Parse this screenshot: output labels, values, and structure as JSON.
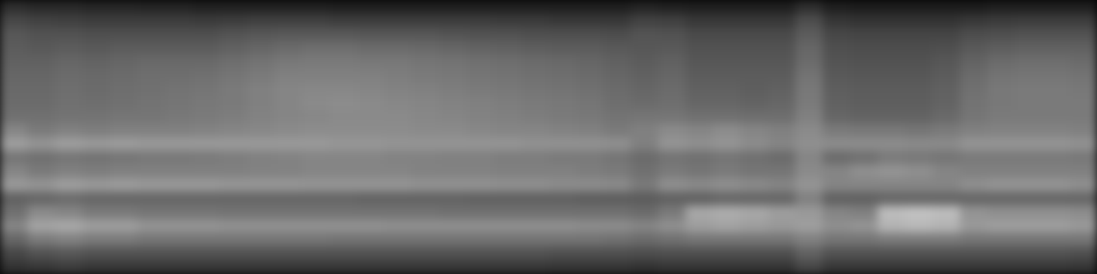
{
  "chart_data": {
    "type": "heatmap",
    "tick_labels": false,
    "zlim": [
      0,
      100
    ],
    "cells": [
      [
        18,
        16,
        16,
        15,
        15,
        14,
        14,
        13,
        13,
        13,
        13,
        13,
        12,
        12,
        12,
        12,
        12,
        12,
        12,
        12,
        12,
        12,
        12,
        14,
        13,
        12,
        12,
        12,
        12,
        18,
        12,
        11,
        11,
        11,
        11,
        11,
        12,
        12,
        12,
        12
      ],
      [
        28,
        26,
        25,
        24,
        24,
        24,
        24,
        23,
        24,
        25,
        25,
        25,
        24,
        24,
        24,
        24,
        24,
        24,
        23,
        23,
        22,
        22,
        22,
        26,
        25,
        22,
        22,
        22,
        22,
        30,
        21,
        20,
        20,
        20,
        20,
        22,
        23,
        24,
        24,
        24
      ],
      [
        34,
        32,
        32,
        31,
        31,
        31,
        31,
        31,
        33,
        34,
        35,
        35,
        35,
        34,
        34,
        34,
        33,
        32,
        32,
        31,
        31,
        31,
        30,
        33,
        32,
        29,
        29,
        29,
        29,
        36,
        28,
        27,
        27,
        27,
        27,
        30,
        31,
        32,
        32,
        32
      ],
      [
        36,
        35,
        36,
        35,
        36,
        36,
        36,
        36,
        38,
        40,
        42,
        43,
        43,
        42,
        42,
        41,
        40,
        39,
        38,
        37,
        36,
        36,
        35,
        34,
        35,
        32,
        32,
        32,
        32,
        40,
        31,
        30,
        30,
        30,
        31,
        35,
        37,
        38,
        38,
        38
      ],
      [
        38,
        38,
        40,
        39,
        40,
        41,
        41,
        41,
        43,
        45,
        47,
        48,
        48,
        47,
        47,
        46,
        45,
        44,
        43,
        42,
        41,
        40,
        38,
        36,
        38,
        34,
        34,
        34,
        34,
        42,
        33,
        32,
        32,
        32,
        34,
        39,
        42,
        43,
        43,
        42
      ],
      [
        40,
        40,
        42,
        41,
        42,
        43,
        43,
        44,
        46,
        48,
        50,
        50,
        50,
        50,
        49,
        48,
        47,
        46,
        45,
        44,
        43,
        42,
        40,
        38,
        40,
        36,
        36,
        36,
        36,
        45,
        35,
        34,
        34,
        34,
        36,
        42,
        45,
        46,
        46,
        45
      ],
      [
        41,
        41,
        43,
        42,
        43,
        44,
        45,
        46,
        48,
        50,
        52,
        53,
        53,
        52,
        51,
        50,
        49,
        48,
        47,
        46,
        45,
        44,
        42,
        40,
        42,
        38,
        38,
        37,
        38,
        47,
        37,
        36,
        36,
        36,
        38,
        44,
        47,
        48,
        48,
        47
      ],
      [
        42,
        42,
        44,
        43,
        44,
        45,
        46,
        47,
        48,
        50,
        52,
        54,
        55,
        54,
        53,
        52,
        51,
        50,
        49,
        48,
        47,
        46,
        43,
        42,
        43,
        40,
        40,
        39,
        40,
        48,
        38,
        37,
        37,
        37,
        39,
        45,
        47,
        48,
        48,
        48
      ],
      [
        44,
        44,
        45,
        45,
        46,
        46,
        47,
        48,
        49,
        51,
        52,
        53,
        54,
        54,
        54,
        53,
        52,
        51,
        50,
        49,
        48,
        47,
        45,
        46,
        46,
        44,
        44,
        43,
        43,
        50,
        40,
        39,
        39,
        39,
        41,
        46,
        48,
        48,
        48,
        48
      ],
      [
        52,
        48,
        50,
        49,
        50,
        50,
        50,
        51,
        52,
        53,
        54,
        55,
        55,
        55,
        55,
        54,
        54,
        53,
        52,
        52,
        51,
        50,
        48,
        50,
        54,
        52,
        55,
        52,
        50,
        54,
        48,
        47,
        47,
        46,
        48,
        50,
        51,
        51,
        51,
        50
      ],
      [
        62,
        58,
        62,
        60,
        61,
        60,
        60,
        60,
        60,
        60,
        60,
        60,
        59,
        59,
        58,
        58,
        58,
        58,
        58,
        57,
        57,
        57,
        56,
        50,
        58,
        56,
        58,
        55,
        52,
        56,
        55,
        55,
        55,
        54,
        54,
        58,
        58,
        58,
        58,
        57
      ],
      [
        46,
        44,
        46,
        45,
        46,
        47,
        47,
        48,
        49,
        50,
        51,
        52,
        52,
        52,
        51,
        51,
        50,
        50,
        49,
        49,
        48,
        48,
        46,
        42,
        45,
        44,
        46,
        44,
        42,
        52,
        42,
        44,
        48,
        47,
        46,
        48,
        48,
        48,
        48,
        47
      ],
      [
        52,
        48,
        50,
        49,
        50,
        50,
        50,
        50,
        50,
        51,
        51,
        52,
        52,
        52,
        52,
        51,
        51,
        51,
        50,
        50,
        50,
        49,
        48,
        44,
        48,
        46,
        48,
        46,
        46,
        54,
        52,
        56,
        58,
        56,
        52,
        50,
        50,
        50,
        50,
        50
      ],
      [
        60,
        58,
        62,
        60,
        61,
        60,
        60,
        60,
        59,
        59,
        59,
        58,
        58,
        58,
        58,
        57,
        57,
        57,
        56,
        56,
        55,
        55,
        54,
        48,
        56,
        54,
        56,
        54,
        52,
        58,
        52,
        52,
        52,
        52,
        52,
        56,
        58,
        58,
        58,
        56
      ],
      [
        38,
        40,
        42,
        40,
        40,
        40,
        40,
        40,
        40,
        40,
        40,
        40,
        40,
        39,
        39,
        39,
        39,
        38,
        38,
        38,
        38,
        37,
        37,
        36,
        38,
        38,
        40,
        40,
        40,
        50,
        38,
        38,
        40,
        40,
        40,
        40,
        40,
        40,
        40,
        40
      ],
      [
        44,
        54,
        52,
        48,
        48,
        46,
        46,
        46,
        45,
        45,
        45,
        45,
        45,
        45,
        45,
        45,
        44,
        44,
        44,
        44,
        44,
        44,
        44,
        42,
        48,
        66,
        68,
        66,
        62,
        60,
        52,
        50,
        74,
        76,
        74,
        58,
        56,
        56,
        56,
        55
      ],
      [
        52,
        64,
        66,
        62,
        62,
        58,
        58,
        58,
        57,
        57,
        57,
        57,
        57,
        57,
        56,
        56,
        56,
        56,
        56,
        56,
        56,
        55,
        55,
        52,
        56,
        62,
        64,
        62,
        60,
        62,
        56,
        58,
        70,
        72,
        70,
        60,
        62,
        62,
        62,
        60
      ],
      [
        40,
        48,
        50,
        48,
        48,
        46,
        46,
        46,
        46,
        46,
        46,
        46,
        45,
        45,
        45,
        45,
        45,
        45,
        45,
        45,
        45,
        45,
        44,
        42,
        44,
        46,
        46,
        46,
        46,
        50,
        46,
        46,
        48,
        48,
        48,
        46,
        46,
        46,
        46,
        46
      ],
      [
        28,
        32,
        34,
        32,
        32,
        32,
        32,
        32,
        32,
        32,
        32,
        32,
        32,
        32,
        32,
        32,
        32,
        32,
        32,
        32,
        31,
        31,
        31,
        30,
        31,
        31,
        31,
        31,
        31,
        38,
        32,
        32,
        32,
        32,
        32,
        32,
        32,
        32,
        32,
        31
      ],
      [
        20,
        22,
        24,
        22,
        22,
        22,
        22,
        22,
        22,
        22,
        22,
        22,
        22,
        22,
        22,
        22,
        22,
        22,
        22,
        22,
        21,
        21,
        21,
        20,
        21,
        21,
        21,
        21,
        21,
        28,
        22,
        22,
        22,
        22,
        22,
        22,
        22,
        22,
        22,
        21
      ]
    ]
  }
}
